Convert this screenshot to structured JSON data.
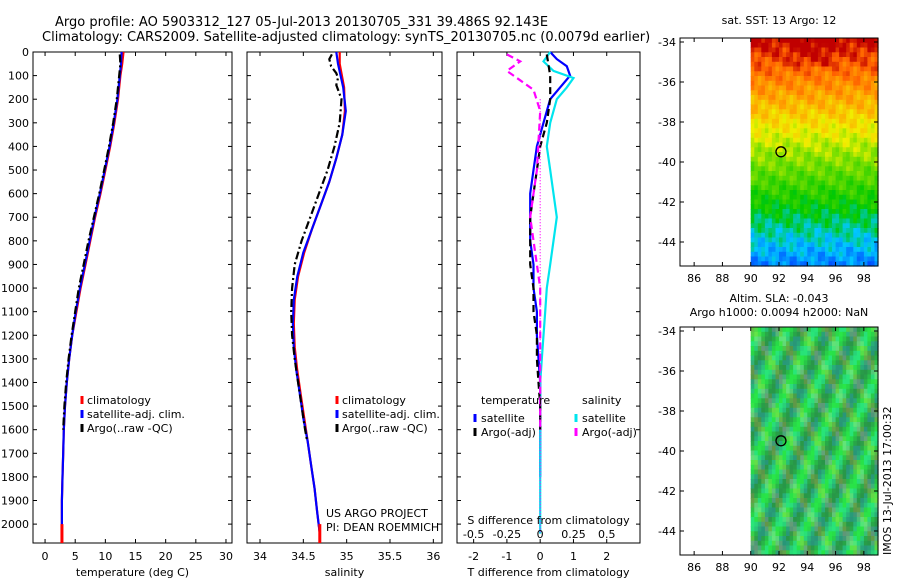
{
  "header": {
    "line1": "Argo profile: AO 5903312_127 05-Jul-2013 20130705_331 39.486S 92.143E",
    "line2": "Climatology: CARS2009. Satellite-adjusted climatology: synTS_20130705.nc (0.0079d earlier)"
  },
  "chart_data": [
    {
      "type": "line",
      "xlabel": "temperature (deg C)",
      "xlim": [
        -2,
        31
      ],
      "ylim": [
        2080,
        0
      ],
      "x_ticks": [
        0,
        5,
        10,
        15,
        20,
        25,
        30
      ],
      "y_ticks": [
        0,
        100,
        200,
        300,
        400,
        500,
        600,
        700,
        800,
        900,
        1000,
        1100,
        1200,
        1300,
        1400,
        1500,
        1600,
        1700,
        1800,
        1900,
        2000
      ],
      "legend": [
        "climatology",
        "satellite-adj. clim.",
        "Argo(..raw -QC)"
      ],
      "legend_colors": [
        "#ff0000",
        "#0000ff",
        "#000000"
      ],
      "series": [
        {
          "name": "climatology",
          "color": "#ff0000",
          "style": "solid",
          "x": [
            13.0,
            12.8,
            12.5,
            12.1,
            11.5,
            10.8,
            10.0,
            9.2,
            8.3,
            7.5,
            6.7,
            5.9,
            5.2,
            4.5,
            4.0,
            3.6,
            3.3,
            3.1,
            3.0,
            2.9,
            2.8,
            2.8
          ],
          "y": [
            0,
            50,
            100,
            200,
            300,
            400,
            500,
            600,
            700,
            800,
            900,
            1000,
            1100,
            1200,
            1300,
            1400,
            1500,
            1600,
            1700,
            1800,
            1900,
            2040
          ]
        },
        {
          "name": "satellite-adj. clim.",
          "color": "#0000ff",
          "style": "solid",
          "x": [
            12.7,
            12.6,
            12.4,
            12.0,
            11.4,
            10.7,
            9.9,
            9.1,
            8.2,
            7.4,
            6.6,
            5.8,
            5.1,
            4.5,
            4.0,
            3.6,
            3.3,
            3.1,
            3.0,
            2.9,
            2.8,
            2.8
          ],
          "y": [
            0,
            50,
            100,
            200,
            300,
            400,
            500,
            600,
            700,
            800,
            900,
            1000,
            1100,
            1200,
            1300,
            1400,
            1500,
            1600,
            1700,
            1800,
            1900,
            2040
          ]
        },
        {
          "name": "Argo(..raw -QC)",
          "color": "#000000",
          "style": "dashdot",
          "x": [
            12.4,
            12.5,
            12.3,
            11.9,
            11.3,
            10.6,
            9.8,
            9.0,
            8.1,
            7.2,
            6.4,
            5.6,
            5.0,
            4.4,
            3.9,
            3.5,
            3.2,
            3.0
          ],
          "y": [
            10,
            50,
            100,
            200,
            300,
            400,
            500,
            600,
            700,
            800,
            900,
            1000,
            1100,
            1200,
            1300,
            1400,
            1500,
            1600
          ]
        }
      ]
    },
    {
      "type": "line",
      "xlabel": "salinity",
      "xlim": [
        33.85,
        36.1
      ],
      "ylim": [
        2080,
        0
      ],
      "x_ticks": [
        34,
        34.5,
        35,
        35.5,
        36
      ],
      "legend": [
        "climatology",
        "satellite-adj. clim.",
        "Argo(..raw -QC)"
      ],
      "legend_colors": [
        "#ff0000",
        "#0000ff",
        "#000000"
      ],
      "annotation": [
        "US ARGO PROJECT",
        "PI: DEAN ROEMMICH"
      ],
      "series": [
        {
          "name": "climatology",
          "color": "#ff0000",
          "style": "solid",
          "x": [
            34.92,
            34.92,
            34.97,
            34.98,
            34.95,
            34.88,
            34.8,
            34.7,
            34.6,
            34.51,
            34.44,
            34.4,
            34.39,
            34.4,
            34.43,
            34.47,
            34.51,
            34.55,
            34.59,
            34.63,
            34.66,
            34.69
          ],
          "y": [
            0,
            50,
            150,
            250,
            350,
            450,
            550,
            650,
            750,
            850,
            950,
            1050,
            1150,
            1250,
            1350,
            1450,
            1550,
            1650,
            1750,
            1850,
            1950,
            2040
          ]
        },
        {
          "name": "satellite-adj. clim.",
          "color": "#0000ff",
          "style": "solid",
          "x": [
            34.88,
            34.9,
            34.96,
            34.99,
            34.95,
            34.88,
            34.8,
            34.7,
            34.6,
            34.5,
            34.43,
            34.39,
            34.38,
            34.39,
            34.42,
            34.46,
            34.5,
            34.55,
            34.59,
            34.63,
            34.66,
            34.69
          ],
          "y": [
            0,
            50,
            150,
            250,
            350,
            450,
            550,
            650,
            750,
            850,
            950,
            1050,
            1150,
            1250,
            1350,
            1450,
            1550,
            1650,
            1750,
            1850,
            1950,
            2040
          ]
        },
        {
          "name": "Argo(..raw -QC)",
          "color": "#000000",
          "style": "dashdot",
          "x": [
            34.83,
            34.8,
            34.82,
            34.88,
            34.9,
            34.88,
            34.94,
            34.92,
            34.86,
            34.78,
            34.68,
            34.58,
            34.48,
            34.4,
            34.37,
            34.36,
            34.37,
            34.4,
            34.44,
            34.48,
            34.52,
            34.54
          ],
          "y": [
            10,
            30,
            60,
            90,
            110,
            140,
            200,
            300,
            400,
            500,
            600,
            700,
            800,
            900,
            1000,
            1100,
            1200,
            1300,
            1400,
            1500,
            1600,
            1640
          ]
        }
      ]
    },
    {
      "type": "line",
      "xlabel": "T difference from climatology",
      "xlabel_top": "S difference from climatology",
      "xlim": [
        -2.5,
        3.0
      ],
      "ylim": [
        2080,
        0
      ],
      "x_ticks": [
        -2,
        -1,
        0,
        1,
        2
      ],
      "x_ticks_top": [
        "-0.5",
        "-0.25",
        "0",
        "0.25",
        "0.5"
      ],
      "x_ticks_top_pos": [
        -2,
        -1,
        0,
        1,
        2
      ],
      "legend_titles": [
        "temperature",
        "salinity"
      ],
      "legend": [
        "satellite",
        "Argo(-adj)",
        "satellite",
        "Argo(-adj)"
      ],
      "legend_colors": [
        "#0000ff",
        "#000000",
        "#00e5ee",
        "#ff00ff"
      ],
      "series": [
        {
          "name": "temperature satellite",
          "color": "#0000ff",
          "style": "solid",
          "x": [
            0.3,
            0.5,
            0.8,
            0.9,
            0.6,
            0.3,
            0.1,
            -0.1,
            -0.2,
            -0.3,
            -0.3,
            -0.3,
            -0.2,
            -0.2,
            -0.1,
            -0.1,
            -0.05,
            0,
            0,
            0,
            0,
            0
          ],
          "y": [
            0,
            30,
            60,
            100,
            150,
            200,
            300,
            400,
            500,
            600,
            700,
            800,
            900,
            1000,
            1100,
            1200,
            1300,
            1400,
            1500,
            1600,
            1700,
            1800
          ]
        },
        {
          "name": "salinity satellite",
          "color": "#00e5ee",
          "style": "solid",
          "x": [
            0.3,
            0.1,
            0.4,
            1.0,
            0.8,
            0.5,
            0.3,
            0.2,
            0.3,
            0.4,
            0.5,
            0.4,
            0.3,
            0.2,
            0.15,
            0.1,
            0.05,
            0,
            0,
            0,
            0,
            0
          ],
          "y": [
            0,
            40,
            80,
            110,
            150,
            200,
            300,
            400,
            500,
            600,
            700,
            800,
            900,
            1000,
            1100,
            1200,
            1300,
            1400,
            1500,
            1600,
            1700,
            2040
          ]
        },
        {
          "name": "temperature Argo(-adj)",
          "color": "#000000",
          "style": "dashed",
          "x": [
            0.2,
            0.3,
            0.3,
            0.2,
            0.0,
            -0.1,
            -0.2,
            -0.3,
            -0.3,
            -0.3,
            -0.2,
            -0.2,
            -0.1,
            -0.1,
            -0.05,
            0,
            0
          ],
          "y": [
            10,
            100,
            200,
            300,
            400,
            500,
            600,
            700,
            800,
            900,
            1000,
            1100,
            1200,
            1300,
            1400,
            1500,
            1600
          ]
        },
        {
          "name": "salinity Argo(-adj)",
          "color": "#ff00ff",
          "style": "dashed",
          "x": [
            -1.0,
            -0.6,
            -1.0,
            -0.6,
            -0.2,
            0.0,
            -0.1,
            -0.2,
            -0.3,
            -0.2,
            -0.1,
            0.0,
            0.0,
            0.0,
            0.0,
            0.0,
            0.0
          ],
          "y": [
            10,
            40,
            80,
            120,
            160,
            250,
            500,
            600,
            700,
            800,
            900,
            1000,
            1100,
            1200,
            1300,
            1400,
            1600
          ]
        },
        {
          "name": "zero line",
          "color": "#ff00ff",
          "style": "dotted",
          "x": [
            0,
            0
          ],
          "y": [
            200,
            2040
          ]
        }
      ]
    },
    {
      "type": "heatmap",
      "title": "sat. SST: 13 Argo: 12",
      "xlim": [
        85,
        99
      ],
      "ylim": [
        -45.2,
        -33.8
      ],
      "x_ticks": [
        86,
        88,
        90,
        92,
        94,
        96,
        98
      ],
      "y_ticks": [
        -34,
        -36,
        -38,
        -40,
        -42,
        -44
      ],
      "data_xrange": [
        90,
        99
      ],
      "marker": {
        "x": 92.14,
        "y": -39.49
      }
    },
    {
      "type": "heatmap",
      "title_lines": [
        "Altim. SLA: -0.043",
        "Argo h1000: 0.0094 h2000: NaN"
      ],
      "xlim": [
        85,
        99
      ],
      "ylim": [
        -45.2,
        -33.8
      ],
      "x_ticks": [
        86,
        88,
        90,
        92,
        94,
        96,
        98
      ],
      "y_ticks": [
        -34,
        -36,
        -38,
        -40,
        -42,
        -44
      ],
      "data_xrange": [
        90,
        99
      ],
      "marker": {
        "x": 92.14,
        "y": -39.49
      }
    }
  ],
  "footer": {
    "stamp": "IMOS 13-Jul-2013 17:00:32"
  }
}
